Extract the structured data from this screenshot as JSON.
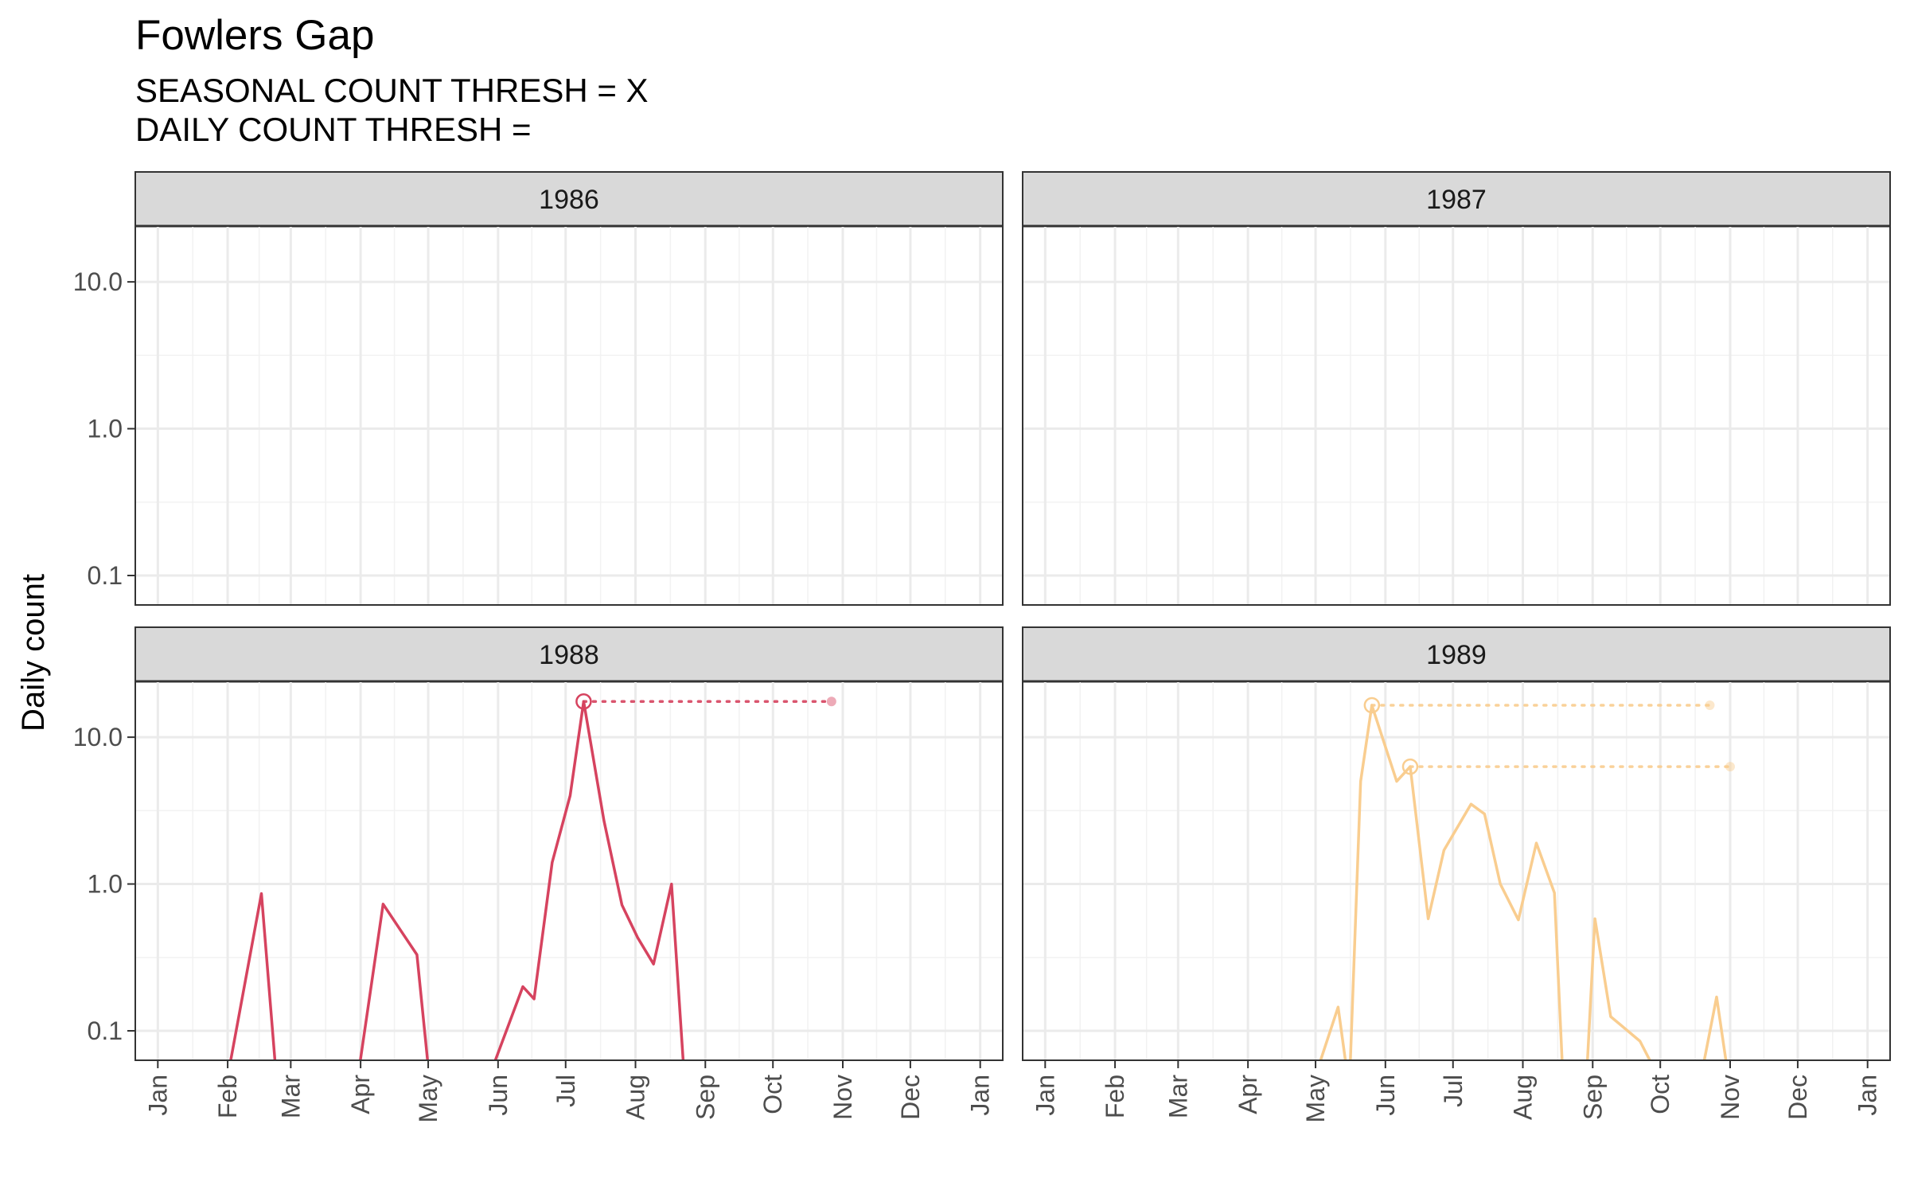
{
  "title": "Fowlers Gap",
  "subtitle_lines": [
    "SEASONAL COUNT THRESH = X",
    "DAILY COUNT THRESH ="
  ],
  "chart_data": {
    "type": "line",
    "ylabel": "Daily count",
    "yscale": "log10",
    "yticks": [
      0.1,
      1.0,
      10.0
    ],
    "ytick_labels": [
      "0.1",
      "1.0",
      "10.0"
    ],
    "ylim": [
      0.063,
      24
    ],
    "xlim": [
      -10,
      375
    ],
    "month_tick_labels": [
      "Jan",
      "Feb",
      "Mar",
      "Apr",
      "May",
      "Jun",
      "Jul",
      "Aug",
      "Sep",
      "Oct",
      "Nov",
      "Dec",
      "Jan"
    ],
    "grid": true,
    "panels": [
      {
        "strip": "1986",
        "series": [],
        "peaks": []
      },
      {
        "strip": "1987",
        "series": [],
        "peaks": []
      },
      {
        "strip": "1988",
        "color": "#d6435f",
        "series": [
          [
            30,
            0.04
          ],
          [
            46,
            0.86
          ],
          [
            53,
            0.04
          ],
          [
            88,
            0.04
          ],
          [
            100,
            0.73
          ],
          [
            115,
            0.33
          ],
          [
            121,
            0.04
          ],
          [
            145,
            0.04
          ],
          [
            162,
            0.2
          ],
          [
            167,
            0.165
          ],
          [
            175,
            1.4
          ],
          [
            183,
            4
          ],
          [
            189,
            17.5
          ],
          [
            198,
            2.7
          ],
          [
            206,
            0.72
          ],
          [
            213,
            0.43
          ],
          [
            220,
            0.285
          ],
          [
            228,
            1.0
          ],
          [
            234,
            0.04
          ]
        ],
        "peaks": [
          {
            "day": 189,
            "value": 17.5,
            "end_day": 299
          }
        ]
      },
      {
        "strip": "1989",
        "color": "#f9cd8f",
        "series": [
          [
            118,
            0.04
          ],
          [
            130,
            0.145
          ],
          [
            135,
            0.04
          ],
          [
            140,
            5
          ],
          [
            145,
            16.5
          ],
          [
            156,
            5
          ],
          [
            162,
            6.3
          ],
          [
            170,
            0.58
          ],
          [
            177,
            1.7
          ],
          [
            189,
            3.5
          ],
          [
            195,
            3.0
          ],
          [
            202,
            1.0
          ],
          [
            210,
            0.57
          ],
          [
            218,
            1.9
          ],
          [
            226,
            0.87
          ],
          [
            230,
            0.04
          ],
          [
            240,
            0.04
          ],
          [
            244,
            0.58
          ],
          [
            251,
            0.125
          ],
          [
            264,
            0.085
          ],
          [
            275,
            0.04
          ],
          [
            290,
            0.04
          ],
          [
            298,
            0.17
          ],
          [
            304,
            0.04
          ]
        ],
        "peaks": [
          {
            "day": 145,
            "value": 16.5,
            "end_day": 295
          },
          {
            "day": 162,
            "value": 6.3,
            "end_day": 304
          }
        ]
      }
    ]
  }
}
